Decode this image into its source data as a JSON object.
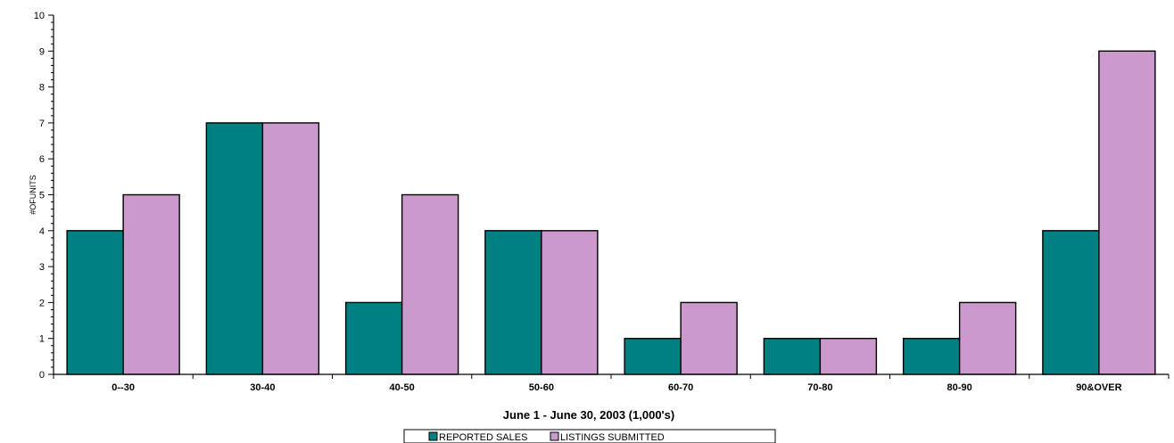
{
  "chart_data": {
    "type": "bar",
    "xlabel": "June 1 - June 30, 2003 (1,000's)",
    "ylabel": "#OFUNITS",
    "categories": [
      "0--30",
      "30-40",
      "40-50",
      "50-60",
      "60-70",
      "70-80",
      "80-90",
      "90&OVER"
    ],
    "series": [
      {
        "name": "REPORTED SALES",
        "color": "#008080",
        "values": [
          4,
          7,
          2,
          4,
          1,
          1,
          1,
          4
        ]
      },
      {
        "name": "LISTINGS SUBMITTED",
        "color": "#cc99cc",
        "values": [
          5,
          7,
          5,
          4,
          2,
          1,
          2,
          9
        ]
      }
    ],
    "ylim": [
      0,
      10
    ],
    "yticks": [
      0,
      1,
      2,
      3,
      4,
      5,
      6,
      7,
      8,
      9,
      10
    ],
    "grid": false,
    "legend_position": "bottom"
  }
}
